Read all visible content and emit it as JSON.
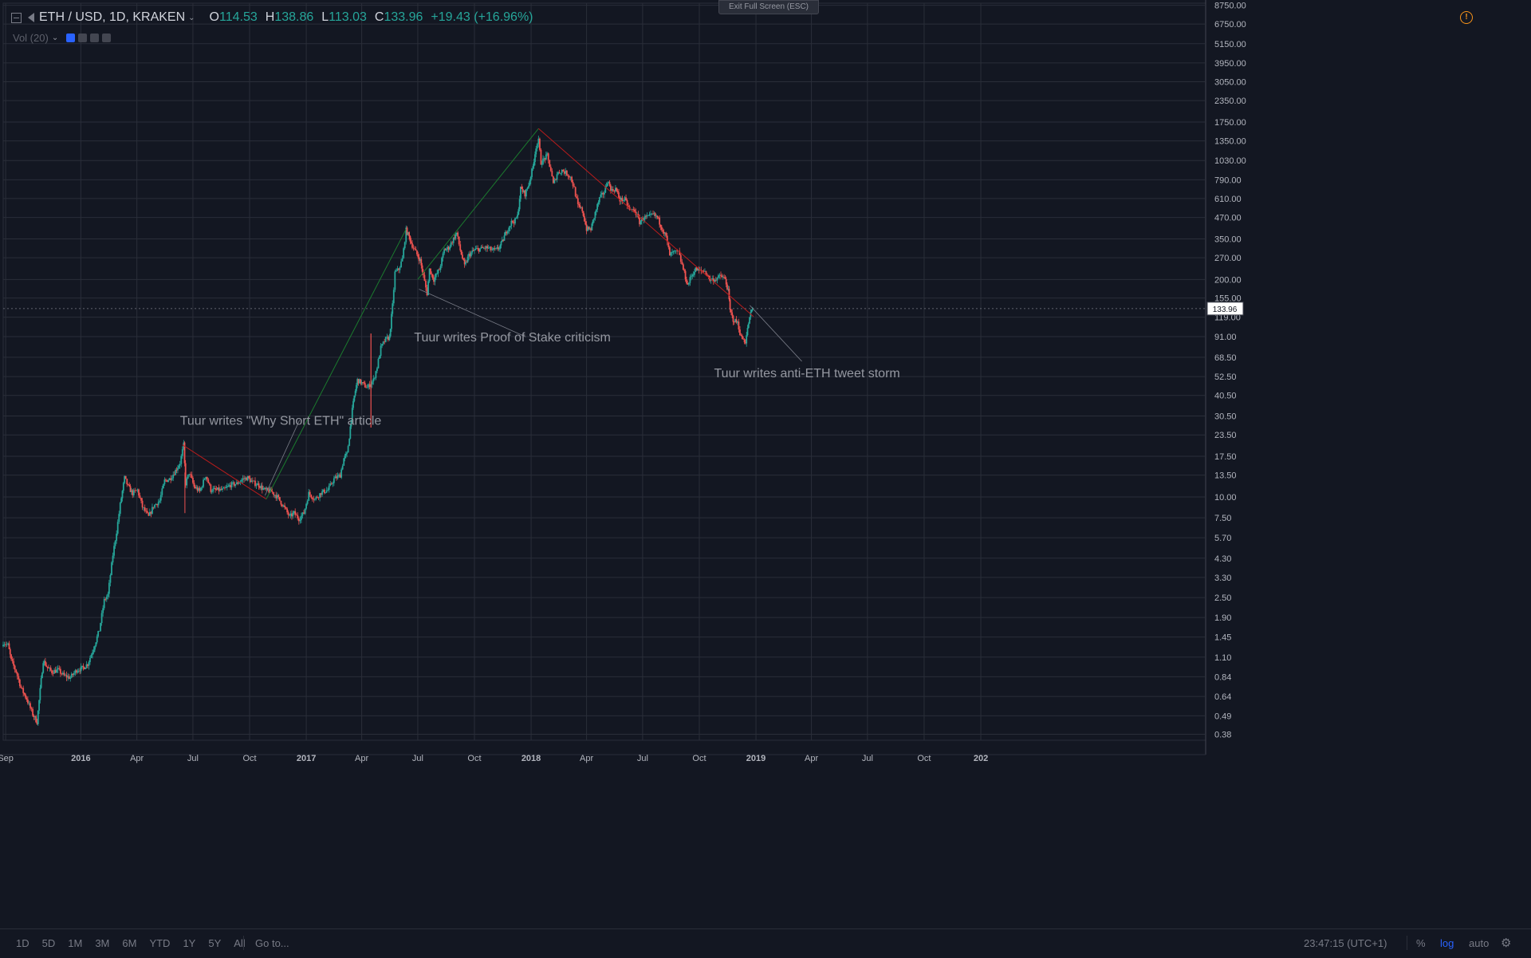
{
  "header": {
    "symbol": "ETH / USD, 1D, KRAKEN",
    "open_label": "O",
    "open": "114.53",
    "high_label": "H",
    "high": "138.86",
    "low_label": "L",
    "low": "113.03",
    "close_label": "C",
    "close": "133.96",
    "change": "+19.43 (+16.96%)",
    "volume_label": "Vol (20)",
    "exit_fullscreen": "Exit Full Screen (ESC)"
  },
  "bottom_bar": {
    "ranges": [
      "1D",
      "5D",
      "1M",
      "3M",
      "6M",
      "YTD",
      "1Y",
      "5Y",
      "All"
    ],
    "goto": "Go to...",
    "clock": "23:47:15 (UTC+1)",
    "percent": "%",
    "log": "log",
    "auto": "auto"
  },
  "icons": [
    "collapse-icon",
    "flag-icon",
    "warning-icon",
    "gear-icon",
    "eye-icon",
    "settings-icon",
    "plus-icon",
    "close-icon"
  ],
  "colors": {
    "background": "#131722",
    "up": "#26a69a",
    "down": "#ef5350",
    "grid": "#2a2e39",
    "text": "#9598a1"
  },
  "chart_data": {
    "type": "candlestick",
    "scale": "log",
    "ylim": [
      0.35,
      9000
    ],
    "xlim": [
      "2015-08-28",
      "2020-12-31"
    ],
    "x_ticks": [
      {
        "date": "2015-09-01",
        "label": "Sep"
      },
      {
        "date": "2016-01-01",
        "label": "2016"
      },
      {
        "date": "2016-04-01",
        "label": "Apr"
      },
      {
        "date": "2016-07-01",
        "label": "Jul"
      },
      {
        "date": "2016-10-01",
        "label": "Oct"
      },
      {
        "date": "2017-01-01",
        "label": "2017"
      },
      {
        "date": "2017-04-01",
        "label": "Apr"
      },
      {
        "date": "2017-07-01",
        "label": "Jul"
      },
      {
        "date": "2017-10-01",
        "label": "Oct"
      },
      {
        "date": "2018-01-01",
        "label": "2018"
      },
      {
        "date": "2018-04-01",
        "label": "Apr"
      },
      {
        "date": "2018-07-01",
        "label": "Jul"
      },
      {
        "date": "2018-10-01",
        "label": "Oct"
      },
      {
        "date": "2019-01-01",
        "label": "2019"
      },
      {
        "date": "2019-04-01",
        "label": "Apr"
      },
      {
        "date": "2019-07-01",
        "label": "Jul"
      },
      {
        "date": "2019-10-01",
        "label": "Oct"
      },
      {
        "date": "2020-01-01",
        "label": "202"
      }
    ],
    "y_ticks": [
      "8750.00",
      "6750.00",
      "5150.00",
      "3950.00",
      "3050.00",
      "2350.00",
      "1750.00",
      "1350.00",
      "1030.00",
      "790.00",
      "610.00",
      "470.00",
      "350.00",
      "270.00",
      "200.00",
      "155.00",
      "119.00",
      "91.00",
      "68.50",
      "52.50",
      "40.50",
      "30.50",
      "23.50",
      "17.50",
      "13.50",
      "10.00",
      "7.50",
      "5.70",
      "4.30",
      "3.30",
      "2.50",
      "1.90",
      "1.45",
      "1.10",
      "0.84",
      "0.64",
      "0.49",
      "0.38"
    ],
    "last_price": "133.96",
    "series": [
      {
        "values": [
          [
            "2015-08-28",
            1.35
          ],
          [
            "2015-09-05",
            1.3
          ],
          [
            "2015-09-10",
            1.05
          ],
          [
            "2015-09-18",
            0.9
          ],
          [
            "2015-09-26",
            0.72
          ],
          [
            "2015-10-05",
            0.62
          ],
          [
            "2015-10-15",
            0.5
          ],
          [
            "2015-10-22",
            0.45
          ],
          [
            "2015-10-27",
            0.7
          ],
          [
            "2015-11-01",
            1.05
          ],
          [
            "2015-11-08",
            0.95
          ],
          [
            "2015-11-15",
            0.9
          ],
          [
            "2015-11-25",
            0.92
          ],
          [
            "2015-12-05",
            0.85
          ],
          [
            "2015-12-15",
            0.83
          ],
          [
            "2015-12-25",
            0.92
          ],
          [
            "2016-01-05",
            0.95
          ],
          [
            "2016-01-12",
            1.0
          ],
          [
            "2016-01-22",
            1.25
          ],
          [
            "2016-01-31",
            1.6
          ],
          [
            "2016-02-08",
            2.4
          ],
          [
            "2016-02-14",
            2.6
          ],
          [
            "2016-02-22",
            4.5
          ],
          [
            "2016-02-28",
            6.2
          ],
          [
            "2016-03-05",
            9.0
          ],
          [
            "2016-03-12",
            13.0
          ],
          [
            "2016-03-18",
            11.5
          ],
          [
            "2016-03-25",
            10.5
          ],
          [
            "2016-04-02",
            11.0
          ],
          [
            "2016-04-10",
            8.7
          ],
          [
            "2016-04-20",
            7.6
          ],
          [
            "2016-04-28",
            8.8
          ],
          [
            "2016-05-08",
            9.5
          ],
          [
            "2016-05-16",
            12.5
          ],
          [
            "2016-05-24",
            12.8
          ],
          [
            "2016-06-01",
            14.0
          ],
          [
            "2016-06-10",
            16.0
          ],
          [
            "2016-06-16",
            20.5
          ],
          [
            "2016-06-19",
            12.0
          ],
          [
            "2016-06-25",
            14.0
          ],
          [
            "2016-07-03",
            11.5
          ],
          [
            "2016-07-12",
            10.8
          ],
          [
            "2016-07-22",
            13.5
          ],
          [
            "2016-07-30",
            11.0
          ],
          [
            "2016-08-10",
            11.0
          ],
          [
            "2016-08-20",
            11.0
          ],
          [
            "2016-08-31",
            11.8
          ],
          [
            "2016-09-10",
            12.0
          ],
          [
            "2016-09-20",
            12.8
          ],
          [
            "2016-09-28",
            13.0
          ],
          [
            "2016-10-06",
            12.2
          ],
          [
            "2016-10-16",
            11.8
          ],
          [
            "2016-10-25",
            11.0
          ],
          [
            "2016-11-05",
            10.8
          ],
          [
            "2016-11-15",
            10.0
          ],
          [
            "2016-11-25",
            8.8
          ],
          [
            "2016-12-05",
            7.6
          ],
          [
            "2016-12-12",
            8.0
          ],
          [
            "2016-12-20",
            7.4
          ],
          [
            "2016-12-28",
            8.0
          ],
          [
            "2017-01-05",
            10.5
          ],
          [
            "2017-01-15",
            9.7
          ],
          [
            "2017-01-25",
            10.6
          ],
          [
            "2017-02-05",
            11.0
          ],
          [
            "2017-02-15",
            12.8
          ],
          [
            "2017-02-25",
            13.5
          ],
          [
            "2017-03-03",
            17.0
          ],
          [
            "2017-03-08",
            18.0
          ],
          [
            "2017-03-12",
            23.0
          ],
          [
            "2017-03-15",
            30.0
          ],
          [
            "2017-03-20",
            40.0
          ],
          [
            "2017-03-25",
            50.0
          ],
          [
            "2017-04-01",
            48.0
          ],
          [
            "2017-04-10",
            45.0
          ],
          [
            "2017-04-20",
            50.0
          ],
          [
            "2017-04-26",
            60.0
          ],
          [
            "2017-05-02",
            78.0
          ],
          [
            "2017-05-10",
            88.0
          ],
          [
            "2017-05-16",
            90.0
          ],
          [
            "2017-05-21",
            140.0
          ],
          [
            "2017-05-25",
            220.0
          ],
          [
            "2017-05-31",
            230.0
          ],
          [
            "2017-06-06",
            265.0
          ],
          [
            "2017-06-12",
            395.0
          ],
          [
            "2017-06-17",
            360.0
          ],
          [
            "2017-06-22",
            320.0
          ],
          [
            "2017-06-28",
            290.0
          ],
          [
            "2017-07-05",
            260.0
          ],
          [
            "2017-07-10",
            210.0
          ],
          [
            "2017-07-16",
            165.0
          ],
          [
            "2017-07-20",
            230.0
          ],
          [
            "2017-07-27",
            200.0
          ],
          [
            "2017-08-05",
            230.0
          ],
          [
            "2017-08-13",
            300.0
          ],
          [
            "2017-08-20",
            310.0
          ],
          [
            "2017-08-28",
            350.0
          ],
          [
            "2017-09-02",
            380.0
          ],
          [
            "2017-09-08",
            300.0
          ],
          [
            "2017-09-15",
            240.0
          ],
          [
            "2017-09-22",
            280.0
          ],
          [
            "2017-10-01",
            300.0
          ],
          [
            "2017-10-10",
            305.0
          ],
          [
            "2017-10-20",
            310.0
          ],
          [
            "2017-10-30",
            300.0
          ],
          [
            "2017-11-05",
            300.0
          ],
          [
            "2017-11-10",
            310.0
          ],
          [
            "2017-11-15",
            335.0
          ],
          [
            "2017-11-22",
            390.0
          ],
          [
            "2017-11-30",
            440.0
          ],
          [
            "2017-12-06",
            450.0
          ],
          [
            "2017-12-10",
            480.0
          ],
          [
            "2017-12-15",
            700.0
          ],
          [
            "2017-12-22",
            650.0
          ],
          [
            "2017-12-28",
            740.0
          ],
          [
            "2018-01-04",
            950.0
          ],
          [
            "2018-01-09",
            1250.0
          ],
          [
            "2018-01-13",
            1350.0
          ],
          [
            "2018-01-17",
            1000.0
          ],
          [
            "2018-01-22",
            1050.0
          ],
          [
            "2018-01-27",
            1100.0
          ],
          [
            "2018-02-02",
            900.0
          ],
          [
            "2018-02-06",
            740.0
          ],
          [
            "2018-02-12",
            860.0
          ],
          [
            "2018-02-20",
            900.0
          ],
          [
            "2018-02-28",
            860.0
          ],
          [
            "2018-03-06",
            820.0
          ],
          [
            "2018-03-12",
            700.0
          ],
          [
            "2018-03-18",
            550.0
          ],
          [
            "2018-03-25",
            520.0
          ],
          [
            "2018-04-01",
            400.0
          ],
          [
            "2018-04-08",
            400.0
          ],
          [
            "2018-04-15",
            500.0
          ],
          [
            "2018-04-22",
            610.0
          ],
          [
            "2018-04-30",
            670.0
          ],
          [
            "2018-05-05",
            780.0
          ],
          [
            "2018-05-12",
            680.0
          ],
          [
            "2018-05-18",
            700.0
          ],
          [
            "2018-05-25",
            600.0
          ],
          [
            "2018-06-02",
            600.0
          ],
          [
            "2018-06-10",
            520.0
          ],
          [
            "2018-06-18",
            520.0
          ],
          [
            "2018-06-26",
            440.0
          ],
          [
            "2018-07-03",
            470.0
          ],
          [
            "2018-07-10",
            470.0
          ],
          [
            "2018-07-18",
            490.0
          ],
          [
            "2018-07-25",
            470.0
          ],
          [
            "2018-08-01",
            410.0
          ],
          [
            "2018-08-08",
            360.0
          ],
          [
            "2018-08-14",
            280.0
          ],
          [
            "2018-08-20",
            290.0
          ],
          [
            "2018-08-28",
            290.0
          ],
          [
            "2018-09-05",
            230.0
          ],
          [
            "2018-09-12",
            185.0
          ],
          [
            "2018-09-18",
            210.0
          ],
          [
            "2018-09-25",
            230.0
          ],
          [
            "2018-10-02",
            225.0
          ],
          [
            "2018-10-10",
            225.0
          ],
          [
            "2018-10-18",
            200.0
          ],
          [
            "2018-10-26",
            200.0
          ],
          [
            "2018-11-05",
            210.0
          ],
          [
            "2018-11-12",
            200.0
          ],
          [
            "2018-11-17",
            170.0
          ],
          [
            "2018-11-20",
            130.0
          ],
          [
            "2018-11-25",
            115.0
          ],
          [
            "2018-12-02",
            110.0
          ],
          [
            "2018-12-08",
            90.0
          ],
          [
            "2018-12-15",
            85.0
          ],
          [
            "2018-12-20",
            110.0
          ],
          [
            "2018-12-25",
            132.0
          ],
          [
            "2018-12-28",
            134.0
          ]
        ]
      }
    ],
    "trendlines": [
      {
        "color": "red",
        "from": [
          "2016-06-14",
          20.5
        ],
        "to": [
          "2016-10-28",
          9.7
        ]
      },
      {
        "color": "green",
        "from": [
          "2016-10-28",
          9.7
        ],
        "to": [
          "2017-06-12",
          400.0
        ]
      },
      {
        "color": "green",
        "from": [
          "2017-07-01",
          200.0
        ],
        "to": [
          "2018-01-13",
          1600.0
        ]
      },
      {
        "color": "red",
        "from": [
          "2018-01-13",
          1600.0
        ],
        "to": [
          "2018-12-28",
          120.0
        ]
      }
    ],
    "annotations": [
      {
        "text": "Tuur writes \"Why Short ETH\" article",
        "at": [
          "2016-09-30",
          9.5
        ]
      },
      {
        "text": "Tuur writes Proof of Stake criticism",
        "at": [
          "2017-07-02",
          170.0
        ]
      },
      {
        "text": "Tuur writes anti-ETH tweet storm",
        "at": [
          "2018-12-20",
          150.0
        ]
      }
    ]
  }
}
